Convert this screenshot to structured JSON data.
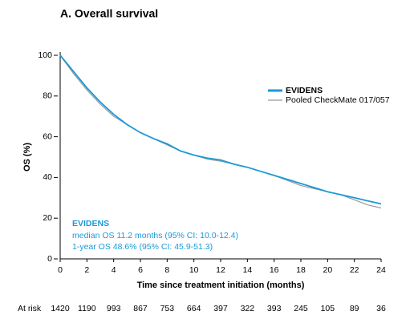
{
  "chart_data": {
    "type": "line",
    "title": "A. Overall survival",
    "xlabel": "Time since treatment initiation (months)",
    "ylabel": "OS (%)",
    "x": [
      0,
      1,
      2,
      3,
      4,
      5,
      6,
      7,
      8,
      9,
      10,
      11,
      12,
      13,
      14,
      15,
      16,
      17,
      18,
      19,
      20,
      21,
      22,
      23,
      24
    ],
    "series": [
      {
        "name": "EVIDENS",
        "color": "#1a9ad6",
        "values": [
          100,
          92,
          84,
          77,
          71,
          66,
          62,
          59,
          56.5,
          53,
          51,
          49.5,
          48.6,
          46.5,
          45,
          43,
          41,
          39,
          37,
          35,
          33,
          31.5,
          30,
          28.5,
          27
        ]
      },
      {
        "name": "Pooled CheckMate 017/057",
        "color": "#9a9a9a",
        "values": [
          100,
          91,
          83,
          76,
          70,
          66,
          62,
          59,
          56,
          53,
          51,
          49,
          48,
          46.5,
          45,
          43,
          41,
          38.5,
          36,
          34.5,
          33,
          31.5,
          29,
          26.5,
          25
        ]
      }
    ],
    "xlim": [
      0,
      24
    ],
    "xticks": [
      0,
      2,
      4,
      6,
      8,
      10,
      12,
      14,
      16,
      18,
      20,
      22,
      24
    ],
    "ylim": [
      0,
      100
    ],
    "yticks": [
      0,
      20,
      40,
      60,
      80,
      100
    ],
    "legend": "upper right",
    "annotation": [
      "EVIDENS",
      "median OS 11.2 months (95% CI: 10.0-12.4)",
      "1-year OS 48.6% (95% CI: 45.9-51.3)"
    ],
    "at_risk": {
      "label": "At risk",
      "values": [
        "1420",
        "1190",
        "993",
        "867",
        "753",
        "664",
        "397",
        "322",
        "393",
        "245",
        "105",
        "89",
        "36"
      ]
    }
  }
}
